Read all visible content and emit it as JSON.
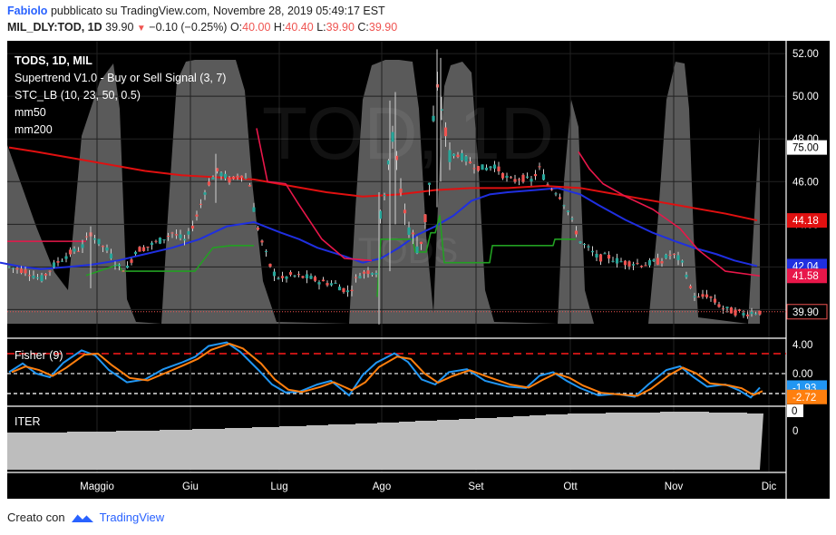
{
  "header": {
    "author": "Fabiolo",
    "published": "pubblicato su TradingView.com, Novembre 28, 2019 05:49:17 EST",
    "symbol": "MIL_DLY:TOD, 1D",
    "last": "39.90",
    "change": "−0.10 (−0.25%)",
    "o_label": "O:",
    "o_val": "40.00",
    "h_label": "H:",
    "h_val": "40.40",
    "l_label": "L:",
    "l_val": "39.90",
    "c_label": "C:",
    "c_val": "39.90"
  },
  "legend": {
    "title": "TODS, 1D, MIL",
    "items": [
      "Supertrend V1.0 - Buy or Sell Signal (3, 7)",
      "STC_LB (10, 23, 50, 0.5)",
      "mm50",
      "mm200"
    ]
  },
  "watermark": {
    "main": "TOD, 1D",
    "sub": "TODS"
  },
  "fisher_label": "Fisher (9)",
  "iter_label": "ITER",
  "footer": {
    "created": "Creato con",
    "brand": "TradingView"
  },
  "colors": {
    "up": "#26a69a",
    "down": "#ef5350",
    "mm50": "#1f2fe0",
    "mm200": "#e01010",
    "supertrend_up": "#22a022",
    "supertrend_down": "#e8174a",
    "fisher": "#2196f3",
    "fisher_trigger": "#ff7f0e"
  },
  "chart_data": [
    {
      "type": "candlestick",
      "x_ticks": [
        "Maggio",
        "Giu",
        "Lug",
        "Ago",
        "Set",
        "Ott",
        "Nov",
        "Dic"
      ],
      "y_ticks": [
        52.0,
        50.0,
        48.0,
        46.0,
        44.0,
        42.0,
        40.0
      ],
      "ylim": [
        38.7,
        52.6
      ],
      "price_tags": [
        {
          "label": "75.00",
          "value": 47.6,
          "kind": "stc"
        },
        {
          "label": "44.18",
          "value": 44.18,
          "kind": "mm200"
        },
        {
          "label": "42.04",
          "value": 42.04,
          "kind": "mm50"
        },
        {
          "label": "41.58",
          "value": 41.58,
          "kind": "supertrend"
        },
        {
          "label": "39.90",
          "value": 39.9,
          "kind": "last"
        }
      ],
      "last_price": 39.9,
      "series": [
        {
          "name": "mm50",
          "values": [
            [
              0,
              42.2
            ],
            [
              25,
              42.0
            ],
            [
              45,
              41.9
            ],
            [
              75,
              42.0
            ],
            [
              100,
              42.1
            ],
            [
              130,
              42.3
            ],
            [
              160,
              42.6
            ],
            [
              190,
              42.9
            ],
            [
              220,
              43.3
            ],
            [
              250,
              43.9
            ],
            [
              280,
              44.1
            ],
            [
              310,
              43.6
            ],
            [
              330,
              43.3
            ],
            [
              350,
              42.9
            ],
            [
              380,
              42.5
            ],
            [
              400,
              42.2
            ],
            [
              420,
              42.4
            ],
            [
              440,
              42.9
            ],
            [
              460,
              43.5
            ],
            [
              480,
              43.9
            ],
            [
              500,
              44.4
            ],
            [
              520,
              45.1
            ],
            [
              540,
              45.4
            ],
            [
              560,
              45.5
            ],
            [
              590,
              45.6
            ],
            [
              615,
              45.7
            ],
            [
              640,
              45.4
            ],
            [
              660,
              44.9
            ],
            [
              690,
              44.2
            ],
            [
              720,
              43.6
            ],
            [
              745,
              43.2
            ],
            [
              765,
              42.9
            ],
            [
              790,
              42.6
            ],
            [
              810,
              42.3
            ],
            [
              835,
              42.04
            ]
          ]
        },
        {
          "name": "mm200",
          "values": [
            [
              10,
              47.6
            ],
            [
              40,
              47.4
            ],
            [
              80,
              47.1
            ],
            [
              120,
              46.8
            ],
            [
              160,
              46.5
            ],
            [
              200,
              46.3
            ],
            [
              240,
              46.2
            ],
            [
              280,
              46.1
            ],
            [
              320,
              45.8
            ],
            [
              360,
              45.5
            ],
            [
              400,
              45.3
            ],
            [
              440,
              45.4
            ],
            [
              480,
              45.6
            ],
            [
              520,
              45.7
            ],
            [
              560,
              45.7
            ],
            [
              600,
              45.8
            ],
            [
              640,
              45.7
            ],
            [
              680,
              45.4
            ],
            [
              720,
              45.1
            ],
            [
              760,
              44.8
            ],
            [
              800,
              44.5
            ],
            [
              835,
              44.18
            ]
          ]
        },
        {
          "name": "supertrend",
          "segments": [
            {
              "trend": "down",
              "values": [
                [
                  8,
                  43.2
                ],
                [
                  95,
                  43.2
                ]
              ]
            },
            {
              "trend": "up",
              "values": [
                [
                  95,
                  41.6
                ],
                [
                  130,
                  42.1
                ],
                [
                  135,
                  41.8
                ],
                [
                  215,
                  41.8
                ],
                [
                  235,
                  42.9
                ],
                [
                  255,
                  43.0
                ],
                [
                  280,
                  43.0
                ]
              ]
            },
            {
              "trend": "down",
              "values": [
                [
                  283,
                  48.5
                ],
                [
                  295,
                  46.0
                ],
                [
                  315,
                  45.9
                ],
                [
                  330,
                  44.9
                ],
                [
                  355,
                  43.3
                ],
                [
                  380,
                  42.4
                ],
                [
                  410,
                  42.3
                ]
              ]
            },
            {
              "trend": "up",
              "values": [
                [
                  416,
                  40.6
                ],
                [
                  420,
                  43.3
                ],
                [
                  455,
                  43.3
                ],
                [
                  458,
                  42.7
                ],
                [
                  470,
                  42.7
                ],
                [
                  475,
                  43.6
                ],
                [
                  480,
                  43.6
                ],
                [
                  485,
                  44.4
                ],
                [
                  490,
                  42.2
                ],
                [
                  540,
                  42.2
                ],
                [
                  543,
                  43.0
                ],
                [
                  610,
                  43.0
                ],
                [
                  612,
                  43.3
                ],
                [
                  635,
                  43.3
                ]
              ]
            },
            {
              "trend": "down",
              "values": [
                [
                  638,
                  47.4
                ],
                [
                  650,
                  46.6
                ],
                [
                  665,
                  45.9
                ],
                [
                  690,
                  45.3
                ],
                [
                  720,
                  44.7
                ],
                [
                  750,
                  43.8
                ],
                [
                  770,
                  42.8
                ],
                [
                  800,
                  41.8
                ],
                [
                  838,
                  41.58
                ]
              ]
            }
          ]
        }
      ]
    },
    {
      "type": "line",
      "title": "Fisher (9)",
      "y_ticks": [
        4.0,
        0.0
      ],
      "value_tags": [
        {
          "label": "-1.93",
          "value": -1.93
        },
        {
          "label": "-2.72",
          "value": -2.72
        }
      ],
      "levels": [
        2.75,
        -2.75,
        0
      ]
    },
    {
      "type": "area",
      "title": "ITER",
      "y_ticks": [
        0
      ],
      "value_tag": "0"
    }
  ]
}
